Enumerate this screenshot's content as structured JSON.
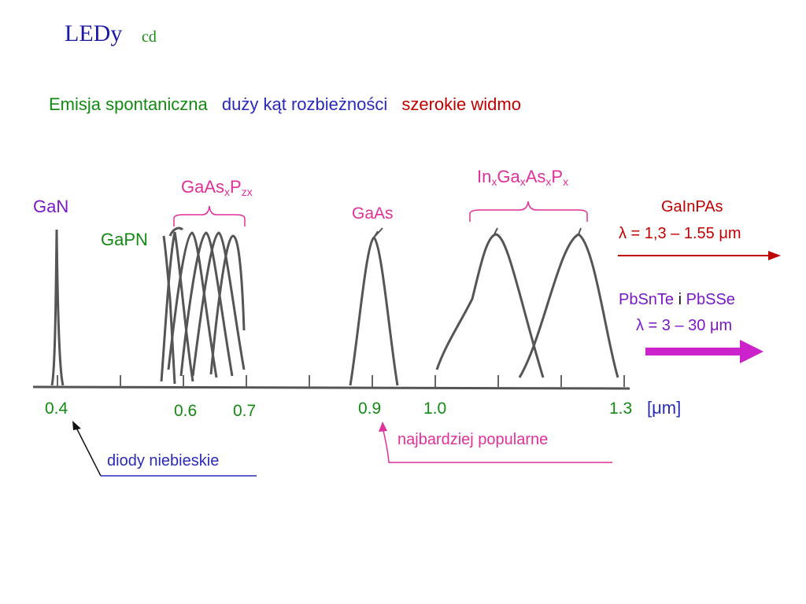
{
  "title": "LEDy",
  "title_suffix": "cd",
  "subtitle": {
    "part1": "Emisja spontaniczna",
    "part2": "duży kąt rozbieżności",
    "part3": "szerokie widmo"
  },
  "labels": {
    "gan": "GaN",
    "gapn": "GaPN",
    "gaasp_base": "GaAs",
    "gaasp_sub_x": "x",
    "gaasp_p": "P",
    "gaasp_sub_zx": "zx",
    "gaas": "GaAs",
    "ingaasp_in": "In",
    "ingaasp_ga": "Ga",
    "ingaasp_as": "As",
    "ingaasp_p": "P",
    "ingaasp_sub": "x"
  },
  "axis": {
    "ticks": [
      "0.4",
      "0.6",
      "0.7",
      "0.9",
      "1.0",
      "1.3"
    ],
    "unit": "[μm]"
  },
  "right_panel": {
    "gainpas_name": "GaInPAs",
    "gainpas_range": "λ = 1,3 – 1.55 μm",
    "pbsnte": "PbSnTe",
    "conj": "i",
    "pbsse": "PbSSe",
    "pb_range": "λ = 3 – 30 μm"
  },
  "notes": {
    "blue_diodes": "diody niebieskie",
    "most_popular": "najbardziej popularne"
  },
  "colors": {
    "title": "#1a1aa6",
    "green": "#138a13",
    "blue": "#2a2ab8",
    "red": "#c00000",
    "magenta": "#e0309a",
    "violet": "#7a18c8",
    "arrow_magenta": "#cc22cc"
  }
}
